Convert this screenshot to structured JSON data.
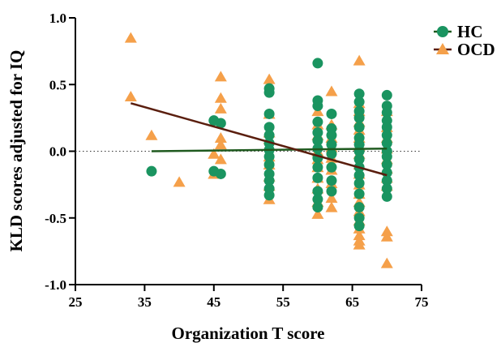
{
  "chart_data": {
    "type": "scatter",
    "xlabel": "Organization T score",
    "ylabel": "KLD scores adjusted for IQ",
    "xlim": [
      25,
      75
    ],
    "ylim": [
      -1.0,
      1.0
    ],
    "x_ticks": [
      25,
      35,
      45,
      55,
      65,
      75
    ],
    "x_tick_labels": [
      "25",
      "35",
      "45",
      "55",
      "65",
      "75"
    ],
    "y_ticks": [
      1.0,
      0.5,
      0.0,
      -0.5,
      -1.0
    ],
    "y_tick_labels": [
      "1.0",
      "0.5",
      "0.0",
      "-0.5",
      "-1.0"
    ],
    "zero_reference_line": "dotted",
    "grid": false,
    "legend": {
      "position": "top-right"
    },
    "series": [
      {
        "name": "HC",
        "marker": "circle",
        "color": "#1a9460",
        "points": [
          [
            36,
            -0.15
          ],
          [
            45,
            0.23
          ],
          [
            45,
            -0.15
          ],
          [
            46,
            0.21
          ],
          [
            46,
            -0.17
          ],
          [
            53,
            0.47
          ],
          [
            53,
            0.44
          ],
          [
            53,
            0.28
          ],
          [
            53,
            0.18
          ],
          [
            53,
            0.12
          ],
          [
            53,
            0.06
          ],
          [
            53,
            0.01
          ],
          [
            53,
            -0.04
          ],
          [
            53,
            -0.1
          ],
          [
            53,
            -0.17
          ],
          [
            53,
            -0.22
          ],
          [
            53,
            -0.28
          ],
          [
            53,
            -0.33
          ],
          [
            60,
            0.66
          ],
          [
            60,
            0.38
          ],
          [
            60,
            0.34
          ],
          [
            60,
            0.22
          ],
          [
            60,
            0.14
          ],
          [
            60,
            0.08
          ],
          [
            60,
            0.02
          ],
          [
            60,
            -0.05
          ],
          [
            60,
            -0.12
          ],
          [
            60,
            -0.2
          ],
          [
            60,
            -0.3
          ],
          [
            60,
            -0.36
          ],
          [
            60,
            -0.42
          ],
          [
            62,
            0.28
          ],
          [
            62,
            0.17
          ],
          [
            62,
            0.12
          ],
          [
            62,
            0.05
          ],
          [
            62,
            -0.02
          ],
          [
            62,
            -0.12
          ],
          [
            62,
            -0.22
          ],
          [
            62,
            -0.3
          ],
          [
            66,
            0.43
          ],
          [
            66,
            0.37
          ],
          [
            66,
            0.3
          ],
          [
            66,
            0.25
          ],
          [
            66,
            0.18
          ],
          [
            66,
            0.1
          ],
          [
            66,
            0.05
          ],
          [
            66,
            0.0
          ],
          [
            66,
            -0.06
          ],
          [
            66,
            -0.12
          ],
          [
            66,
            -0.18
          ],
          [
            66,
            -0.24
          ],
          [
            66,
            -0.32
          ],
          [
            66,
            -0.42
          ],
          [
            66,
            -0.5
          ],
          [
            66,
            -0.56
          ],
          [
            70,
            0.42
          ],
          [
            70,
            0.34
          ],
          [
            70,
            0.29
          ],
          [
            70,
            0.23
          ],
          [
            70,
            0.18
          ],
          [
            70,
            0.12
          ],
          [
            70,
            0.06
          ],
          [
            70,
            0.0
          ],
          [
            70,
            -0.04
          ],
          [
            70,
            -0.1
          ],
          [
            70,
            -0.16
          ],
          [
            70,
            -0.22
          ],
          [
            70,
            -0.28
          ],
          [
            70,
            -0.34
          ]
        ],
        "regression": {
          "color": "#1f5a1f",
          "x": [
            36,
            70
          ],
          "y": [
            0.0,
            0.02
          ]
        }
      },
      {
        "name": "OCD",
        "marker": "triangle",
        "color": "#f5a04a",
        "points": [
          [
            33,
            0.85
          ],
          [
            33,
            0.41
          ],
          [
            36,
            0.12
          ],
          [
            40,
            -0.23
          ],
          [
            45,
            -0.02
          ],
          [
            45,
            -0.17
          ],
          [
            46,
            0.56
          ],
          [
            46,
            0.4
          ],
          [
            46,
            0.32
          ],
          [
            46,
            0.1
          ],
          [
            46,
            0.05
          ],
          [
            46,
            -0.06
          ],
          [
            53,
            0.54
          ],
          [
            53,
            0.28
          ],
          [
            53,
            0.14
          ],
          [
            53,
            0.09
          ],
          [
            53,
            0.04
          ],
          [
            53,
            -0.04
          ],
          [
            53,
            -0.1
          ],
          [
            53,
            -0.19
          ],
          [
            53,
            -0.26
          ],
          [
            53,
            -0.36
          ],
          [
            60,
            0.3
          ],
          [
            60,
            0.2
          ],
          [
            60,
            0.12
          ],
          [
            60,
            0.0
          ],
          [
            60,
            -0.06
          ],
          [
            60,
            -0.12
          ],
          [
            60,
            -0.2
          ],
          [
            60,
            -0.28
          ],
          [
            60,
            -0.38
          ],
          [
            60,
            -0.47
          ],
          [
            62,
            0.45
          ],
          [
            62,
            0.2
          ],
          [
            62,
            0.1
          ],
          [
            62,
            0.03
          ],
          [
            62,
            -0.05
          ],
          [
            62,
            -0.14
          ],
          [
            62,
            -0.24
          ],
          [
            62,
            -0.35
          ],
          [
            62,
            -0.42
          ],
          [
            66,
            0.68
          ],
          [
            66,
            0.36
          ],
          [
            66,
            0.3
          ],
          [
            66,
            0.22
          ],
          [
            66,
            0.16
          ],
          [
            66,
            0.1
          ],
          [
            66,
            0.04
          ],
          [
            66,
            -0.02
          ],
          [
            66,
            -0.1
          ],
          [
            66,
            -0.17
          ],
          [
            66,
            -0.25
          ],
          [
            66,
            -0.32
          ],
          [
            66,
            -0.38
          ],
          [
            66,
            -0.45
          ],
          [
            66,
            -0.52
          ],
          [
            66,
            -0.58
          ],
          [
            66,
            -0.63
          ],
          [
            66,
            -0.67
          ],
          [
            66,
            -0.7
          ],
          [
            70,
            0.3
          ],
          [
            70,
            0.18
          ],
          [
            70,
            0.1
          ],
          [
            70,
            0.02
          ],
          [
            70,
            -0.06
          ],
          [
            70,
            -0.13
          ],
          [
            70,
            -0.2
          ],
          [
            70,
            -0.26
          ],
          [
            70,
            -0.6
          ],
          [
            70,
            -0.64
          ],
          [
            70,
            -0.84
          ]
        ],
        "regression": {
          "color": "#5a1e0e",
          "x": [
            33,
            70
          ],
          "y": [
            0.36,
            -0.18
          ]
        }
      }
    ]
  }
}
